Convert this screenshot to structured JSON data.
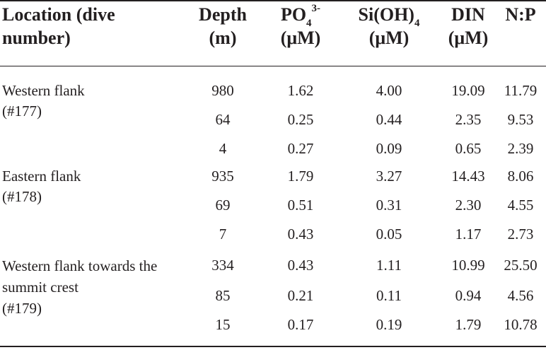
{
  "headers": {
    "location": [
      "Location (dive",
      "number)"
    ],
    "depth": [
      "Depth",
      "(m)"
    ],
    "po4": {
      "base": "PO",
      "sub": "4",
      "sup": "3-",
      "unit": "(μM)"
    },
    "sioh4": {
      "base": "Si(OH)",
      "sub": "4",
      "unit": "(μM)"
    },
    "din": [
      "DIN",
      "(μM)"
    ],
    "np": "N:P"
  },
  "groups": [
    {
      "location": [
        "Western flank",
        "(#177)"
      ],
      "rows": [
        {
          "depth": "980",
          "po4": "1.62",
          "sioh4": "4.00",
          "din": "19.09",
          "np": "11.79"
        },
        {
          "depth": "64",
          "po4": "0.25",
          "sioh4": "0.44",
          "din": "2.35",
          "np": "9.53"
        },
        {
          "depth": "4",
          "po4": "0.27",
          "sioh4": "0.09",
          "din": "0.65",
          "np": "2.39"
        }
      ]
    },
    {
      "location": [
        "Eastern flank",
        "(#178)"
      ],
      "rows": [
        {
          "depth": "935",
          "po4": "1.79",
          "sioh4": "3.27",
          "din": "14.43",
          "np": "8.06"
        },
        {
          "depth": "69",
          "po4": "0.51",
          "sioh4": "0.31",
          "din": "2.30",
          "np": "4.55"
        },
        {
          "depth": "7",
          "po4": "0.43",
          "sioh4": "0.05",
          "din": "1.17",
          "np": "2.73"
        }
      ]
    },
    {
      "location": [
        "Western flank towards the",
        "summit crest",
        "(#179)"
      ],
      "rows": [
        {
          "depth": "334",
          "po4": "0.43",
          "sioh4": "1.11",
          "din": "10.99",
          "np": "25.50"
        },
        {
          "depth": "85",
          "po4": "0.21",
          "sioh4": "0.11",
          "din": "0.94",
          "np": "4.56"
        },
        {
          "depth": "15",
          "po4": "0.17",
          "sioh4": "0.19",
          "din": "1.79",
          "np": "10.78"
        }
      ]
    }
  ]
}
